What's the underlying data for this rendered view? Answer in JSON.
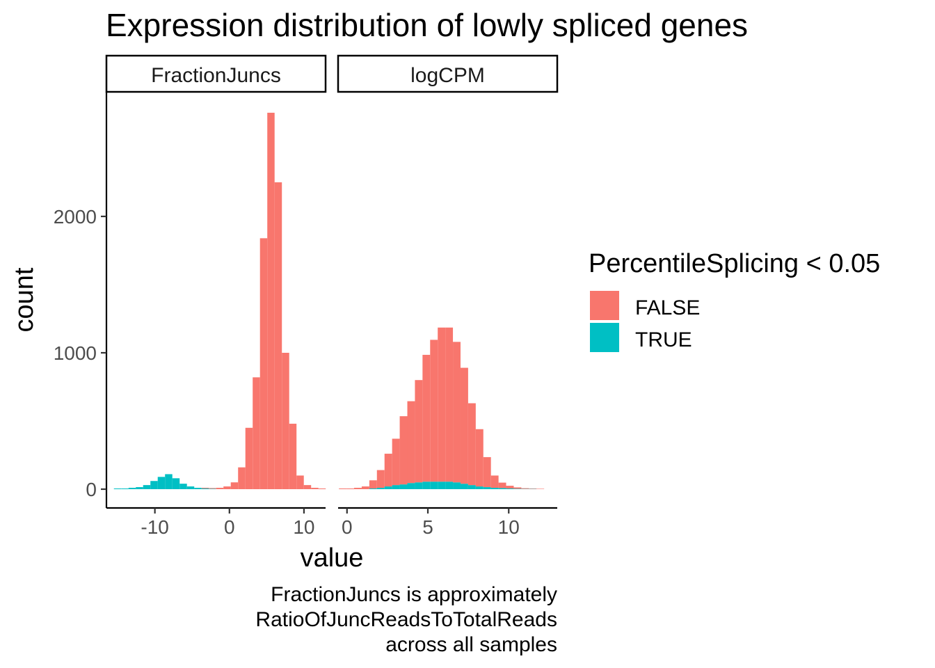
{
  "chart_data": {
    "type": "bar",
    "title": "Expression distribution of lowly spliced genes",
    "xlabel": "value",
    "ylabel": "count",
    "caption": [
      "FractionJuncs is approximately",
      "RatioOfJuncReadsToTotalReads",
      "across all samples"
    ],
    "y_ticks": [
      0,
      1000,
      2000
    ],
    "ylim": [
      0,
      2800
    ],
    "legend": {
      "title": "PercentileSplicing < 0.05",
      "position": "right",
      "entries": [
        {
          "label": "FALSE",
          "color": "#F8766D"
        },
        {
          "label": "TRUE",
          "color": "#00BFC4"
        }
      ]
    },
    "panels": [
      {
        "strip": "FractionJuncs",
        "x_ticks": [
          -10,
          0,
          10
        ],
        "xlim": [
          -16.5,
          12.9
        ],
        "bin_start": -15.5,
        "bin_width": 0.98,
        "series": [
          {
            "name": "FALSE",
            "values": [
              0,
              0,
              0,
              0,
              0,
              0,
              0,
              0,
              0,
              0,
              0,
              0,
              5,
              5,
              10,
              20,
              50,
              160,
              450,
              820,
              1840,
              2760,
              2250,
              1000,
              480,
              100,
              30,
              10,
              5,
              0
            ]
          },
          {
            "name": "TRUE",
            "values": [
              5,
              5,
              10,
              15,
              30,
              60,
              90,
              110,
              80,
              40,
              20,
              10,
              5,
              3,
              0,
              0,
              0,
              0,
              0,
              0,
              0,
              0,
              0,
              0,
              0,
              0,
              0,
              0,
              0,
              0
            ]
          }
        ]
      },
      {
        "strip": "logCPM",
        "x_ticks": [
          0,
          5,
          10
        ],
        "xlim": [
          -0.55,
          13.0
        ],
        "bin_start": -0.5,
        "bin_width": 0.47,
        "series": [
          {
            "name": "FALSE",
            "values": [
              5,
              5,
              10,
              20,
              60,
              130,
              240,
              340,
              500,
              600,
              750,
              930,
              1040,
              1130,
              1130,
              1030,
              850,
              600,
              420,
              220,
              90,
              40,
              20,
              10,
              5,
              3,
              3,
              0,
              0
            ]
          },
          {
            "name": "TRUE",
            "values": [
              0,
              0,
              0,
              0,
              5,
              10,
              20,
              30,
              35,
              45,
              50,
              55,
              55,
              55,
              55,
              50,
              40,
              30,
              20,
              15,
              10,
              8,
              5,
              3,
              2,
              2,
              0,
              0,
              0
            ]
          }
        ]
      }
    ]
  }
}
